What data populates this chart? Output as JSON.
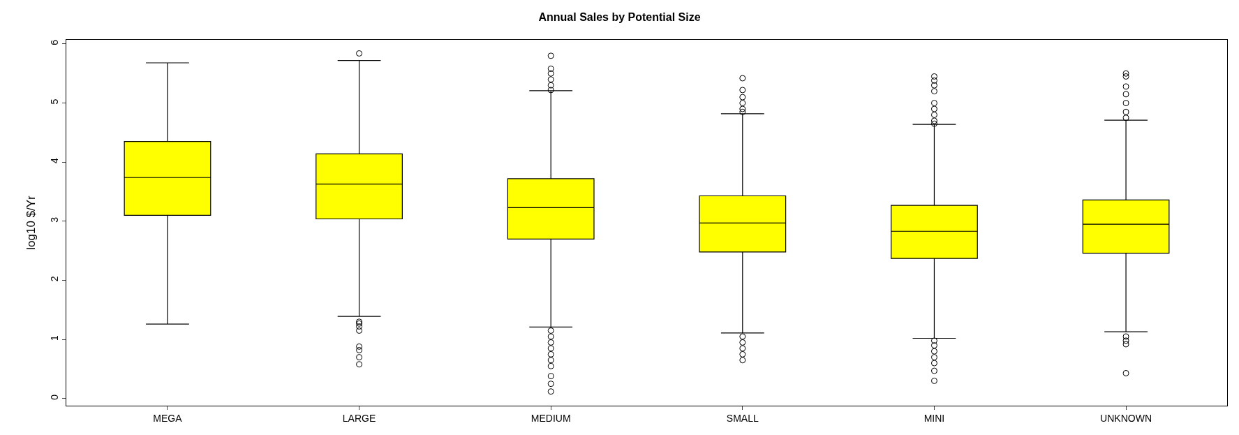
{
  "chart_data": {
    "type": "box",
    "title": "Annual Sales by Potential Size",
    "ylabel": "log10 $/Yr",
    "categories": [
      "MEGA",
      "LARGE",
      "MEDIUM",
      "SMALL",
      "MINI",
      "UNKNOWN"
    ],
    "color": "#ffff00",
    "boxes": [
      {
        "low": 1.26,
        "q1": 3.1,
        "median": 3.74,
        "q3": 4.35,
        "high": 5.68
      },
      {
        "low": 1.39,
        "q1": 3.04,
        "median": 3.63,
        "q3": 4.14,
        "high": 5.72,
        "outliers": [
          5.84,
          1.3,
          1.27,
          1.22,
          1.15,
          0.88,
          0.82,
          0.7,
          0.58
        ]
      },
      {
        "low": 1.21,
        "q1": 2.7,
        "median": 3.23,
        "q3": 3.72,
        "high": 5.21,
        "outliers": [
          5.8,
          5.58,
          5.5,
          5.4,
          5.3,
          5.22,
          1.15,
          1.05,
          0.95,
          0.85,
          0.75,
          0.65,
          0.55,
          0.38,
          0.25,
          0.12
        ]
      },
      {
        "low": 1.11,
        "q1": 2.48,
        "median": 2.97,
        "q3": 3.43,
        "high": 4.82,
        "outliers": [
          5.42,
          5.22,
          5.1,
          5.0,
          4.9,
          4.85,
          1.05,
          0.95,
          0.85,
          0.75,
          0.65
        ]
      },
      {
        "low": 1.02,
        "q1": 2.37,
        "median": 2.83,
        "q3": 3.27,
        "high": 4.64,
        "outliers": [
          5.45,
          5.38,
          5.3,
          5.2,
          5.0,
          4.9,
          4.8,
          4.7,
          4.65,
          0.98,
          0.9,
          0.8,
          0.7,
          0.6,
          0.47,
          0.3
        ]
      },
      {
        "low": 1.13,
        "q1": 2.46,
        "median": 2.95,
        "q3": 3.36,
        "high": 4.71,
        "outliers": [
          5.5,
          5.45,
          5.28,
          5.15,
          5.0,
          4.85,
          4.75,
          1.05,
          0.98,
          0.92,
          0.43
        ]
      }
    ],
    "ylim": [
      -0.12,
      6.07
    ],
    "yticks": [
      0,
      1,
      2,
      3,
      4,
      5,
      6
    ]
  }
}
